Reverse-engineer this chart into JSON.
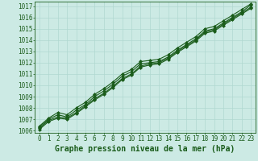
{
  "bg_color": "#cceae4",
  "grid_color": "#b0d8d0",
  "line_color": "#1a5c1a",
  "title": "Graphe pression niveau de la mer (hPa)",
  "xlim_min": -0.5,
  "xlim_max": 23.5,
  "ylim_min": 1005.8,
  "ylim_max": 1017.4,
  "yticks": [
    1006,
    1007,
    1008,
    1009,
    1010,
    1011,
    1012,
    1013,
    1014,
    1015,
    1016,
    1017
  ],
  "xticks": [
    0,
    1,
    2,
    3,
    4,
    5,
    6,
    7,
    8,
    9,
    10,
    11,
    12,
    13,
    14,
    15,
    16,
    17,
    18,
    19,
    20,
    21,
    22,
    23
  ],
  "series": [
    [
      1006.3,
      1007.0,
      1007.4,
      1007.2,
      1007.8,
      1008.3,
      1009.0,
      1009.5,
      1010.1,
      1010.8,
      1011.2,
      1011.9,
      1012.0,
      1012.1,
      1012.5,
      1013.1,
      1013.6,
      1014.1,
      1014.8,
      1015.0,
      1015.5,
      1016.0,
      1016.5,
      1017.1
    ],
    [
      1006.2,
      1006.9,
      1007.2,
      1007.1,
      1007.6,
      1008.2,
      1008.8,
      1009.3,
      1009.9,
      1010.6,
      1011.0,
      1011.7,
      1011.9,
      1012.0,
      1012.4,
      1013.0,
      1013.5,
      1014.0,
      1014.7,
      1014.9,
      1015.4,
      1015.9,
      1016.4,
      1016.9
    ],
    [
      1006.4,
      1007.1,
      1007.6,
      1007.4,
      1008.0,
      1008.5,
      1009.2,
      1009.7,
      1010.3,
      1011.0,
      1011.4,
      1012.1,
      1012.2,
      1012.3,
      1012.7,
      1013.3,
      1013.8,
      1014.3,
      1015.0,
      1015.2,
      1015.7,
      1016.2,
      1016.7,
      1017.2
    ],
    [
      1006.1,
      1006.8,
      1007.1,
      1007.0,
      1007.5,
      1008.1,
      1008.7,
      1009.2,
      1009.8,
      1010.5,
      1010.9,
      1011.6,
      1011.8,
      1011.9,
      1012.3,
      1012.9,
      1013.4,
      1013.9,
      1014.6,
      1014.8,
      1015.3,
      1015.8,
      1016.3,
      1016.8
    ]
  ],
  "marker": "D",
  "marker_size": 2.0,
  "line_width": 0.8,
  "title_fontsize": 7,
  "tick_fontsize": 5.5
}
